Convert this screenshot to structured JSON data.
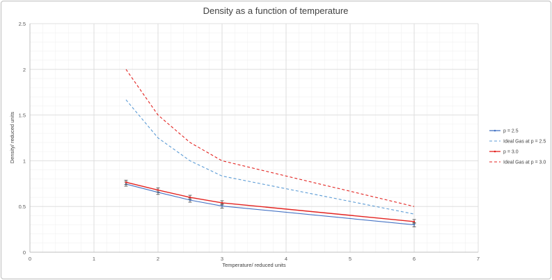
{
  "chart_data": {
    "type": "line",
    "title": "Density as a function of temperature",
    "xlabel": "Temperature/ reduced units",
    "ylabel": "Density/ reduced units",
    "xlim": [
      0,
      7
    ],
    "ylim": [
      0,
      2.5
    ],
    "xticks": [
      0,
      1,
      2,
      3,
      4,
      5,
      6,
      7
    ],
    "yticks": [
      0,
      0.5,
      1,
      1.5,
      2,
      2.5
    ],
    "xtick_labels": [
      "0",
      "1",
      "2",
      "3",
      "4",
      "5",
      "6",
      "7"
    ],
    "ytick_labels": [
      "0",
      "0.5",
      "1",
      "1.5",
      "2",
      "2.5"
    ],
    "grid": true,
    "legend_position": "right",
    "series": [
      {
        "name": "p = 2.5",
        "color": "#4472c4",
        "style": "solid-errorbar",
        "x": [
          1.5,
          2.0,
          2.5,
          3.0,
          6.0
        ],
        "y": [
          0.745,
          0.655,
          0.57,
          0.505,
          0.3
        ]
      },
      {
        "name": "Ideal Gas at p = 2.5",
        "color": "#5b9bd5",
        "style": "dashed",
        "x": [
          1.5,
          2.0,
          2.5,
          3.0,
          6.0
        ],
        "y": [
          1.667,
          1.25,
          1.0,
          0.833,
          0.417
        ]
      },
      {
        "name": "p = 3.0",
        "color": "#e3221f",
        "style": "solid-errorbar",
        "x": [
          1.5,
          2.0,
          2.5,
          3.0,
          6.0
        ],
        "y": [
          0.765,
          0.68,
          0.6,
          0.54,
          0.335
        ]
      },
      {
        "name": "Ideal Gas at p = 3.0",
        "color": "#e3221f",
        "style": "dashed",
        "x": [
          1.5,
          2.0,
          2.5,
          3.0,
          6.0
        ],
        "y": [
          2.0,
          1.5,
          1.2,
          1.0,
          0.5
        ]
      }
    ]
  }
}
